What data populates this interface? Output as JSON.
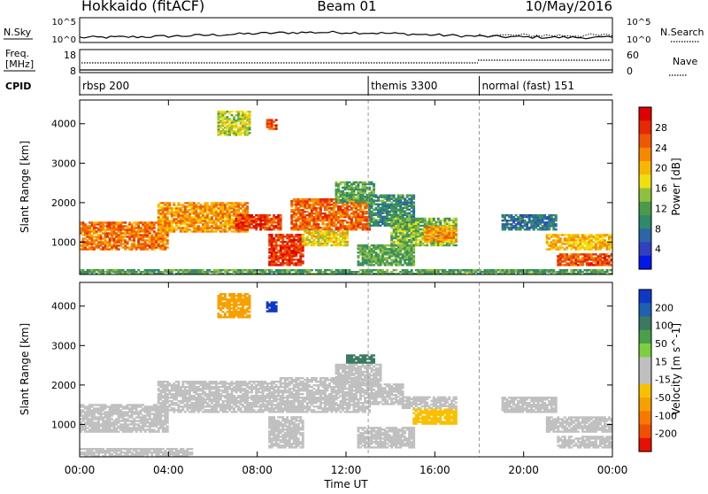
{
  "header": {
    "station": "Hokkaido (fitACF)",
    "beam": "Beam 01",
    "date": "10/May/2016"
  },
  "top_panels": {
    "nsky_label": "N.Sky",
    "nsky_ticks": [
      "10^5",
      "10^0"
    ],
    "nsearch_label": "N.Search",
    "nsearch_ticks": [
      "10^5",
      "10^0"
    ],
    "freq_label_1": "Freq.",
    "freq_label_2": "[MHz]",
    "freq_ticks": [
      "18",
      "8"
    ],
    "nave_label": "Nave",
    "nave_ticks": [
      "60",
      "0"
    ],
    "cpid_label": "CPID",
    "cpid_segments": [
      {
        "label": "rbsp 200",
        "start_hour": 0
      },
      {
        "label": "themis 3300",
        "start_hour": 13
      },
      {
        "label": "normal (fast) 151",
        "start_hour": 18
      }
    ]
  },
  "chart_data": [
    {
      "type": "heatmap",
      "title": "",
      "xlabel": "Time UT",
      "ylabel": "Slant Range [km]",
      "x_range_hours": [
        0,
        24
      ],
      "x_tick_labels": [
        "00:00",
        "04:00",
        "08:00",
        "12:00",
        "16:00",
        "20:00",
        "00:00"
      ],
      "ylim": [
        180,
        4600
      ],
      "y_ticks": [
        1000,
        2000,
        3000,
        4000
      ],
      "colorbar": {
        "label": "Power [dB]",
        "ticks": [
          4,
          8,
          12,
          16,
          20,
          24,
          28
        ],
        "colors": [
          "#0018e8",
          "#3040c0",
          "#2c66a8",
          "#2f8a6a",
          "#4a9a4a",
          "#90c040",
          "#f0e010",
          "#f8b800",
          "#f88800",
          "#f05800",
          "#e82800",
          "#e00000"
        ]
      },
      "regions": [
        {
          "t0": 0.0,
          "t1": 4.0,
          "r0": 800,
          "r1": 1500,
          "value": 24
        },
        {
          "t0": 3.5,
          "t1": 7.5,
          "r0": 1250,
          "r1": 2000,
          "value": 22
        },
        {
          "t0": 7.0,
          "t1": 9.0,
          "r0": 1300,
          "r1": 1700,
          "value": 27
        },
        {
          "t0": 8.5,
          "t1": 10.0,
          "r0": 400,
          "r1": 1200,
          "value": 28
        },
        {
          "t0": 9.5,
          "t1": 13.0,
          "r0": 1300,
          "r1": 2100,
          "value": 25
        },
        {
          "t0": 10.0,
          "t1": 12.0,
          "r0": 900,
          "r1": 1300,
          "value": 18
        },
        {
          "t0": 11.5,
          "t1": 13.2,
          "r0": 2000,
          "r1": 2500,
          "value": 12
        },
        {
          "t0": 13.0,
          "t1": 15.0,
          "r0": 1400,
          "r1": 2200,
          "value": 10
        },
        {
          "t0": 14.0,
          "t1": 17.0,
          "r0": 900,
          "r1": 1600,
          "value": 14
        },
        {
          "t0": 15.5,
          "t1": 17.0,
          "r0": 1000,
          "r1": 1400,
          "value": 22
        },
        {
          "t0": 12.5,
          "t1": 15.0,
          "r0": 400,
          "r1": 900,
          "value": 12
        },
        {
          "t0": 19.0,
          "t1": 21.5,
          "r0": 1300,
          "r1": 1700,
          "value": 8
        },
        {
          "t0": 21.0,
          "t1": 24.0,
          "r0": 800,
          "r1": 1200,
          "value": 20
        },
        {
          "t0": 21.5,
          "t1": 24.0,
          "r0": 400,
          "r1": 700,
          "value": 26
        },
        {
          "t0": 6.2,
          "t1": 7.6,
          "r0": 3700,
          "r1": 4300,
          "value": 16
        },
        {
          "t0": 8.4,
          "t1": 8.8,
          "r0": 3850,
          "r1": 4100,
          "value": 26
        },
        {
          "t0": 0.0,
          "t1": 24.0,
          "r0": 180,
          "r1": 300,
          "value": 12
        }
      ]
    },
    {
      "type": "heatmap",
      "title": "",
      "xlabel": "Time UT",
      "ylabel": "Slant Range [km]",
      "x_range_hours": [
        0,
        24
      ],
      "x_tick_labels": [
        "00:00",
        "04:00",
        "08:00",
        "12:00",
        "16:00",
        "20:00",
        "00:00"
      ],
      "ylim": [
        180,
        4600
      ],
      "y_ticks": [
        1000,
        2000,
        3000,
        4000
      ],
      "colorbar": {
        "label": "Velocity [m s^-1]",
        "ticks": [
          200,
          100,
          50,
          15,
          -15,
          -50,
          -100,
          -200
        ],
        "colors": [
          "#1038c8",
          "#2060b0",
          "#3a7a60",
          "#48a048",
          "#7cd040",
          "#c0c0c0",
          "#c0c0c0",
          "#f8c000",
          "#f8a000",
          "#f87800",
          "#f05000",
          "#e81000"
        ]
      },
      "regions": [
        {
          "t0": 0.0,
          "t1": 4.0,
          "r0": 800,
          "r1": 1500,
          "value": 0
        },
        {
          "t0": 3.5,
          "t1": 9.0,
          "r0": 1300,
          "r1": 2100,
          "value": 0
        },
        {
          "t0": 9.0,
          "t1": 13.0,
          "r0": 1300,
          "r1": 2200,
          "value": 0
        },
        {
          "t0": 8.5,
          "t1": 10.0,
          "r0": 400,
          "r1": 1200,
          "value": 0
        },
        {
          "t0": 11.5,
          "t1": 13.5,
          "r0": 2000,
          "r1": 2500,
          "value": 0
        },
        {
          "t0": 13.0,
          "t1": 14.5,
          "r0": 1500,
          "r1": 2000,
          "value": 30
        },
        {
          "t0": 15.0,
          "t1": 17.0,
          "r0": 1000,
          "r1": 1400,
          "value": -60
        },
        {
          "t0": 14.5,
          "t1": 17.0,
          "r0": 1400,
          "r1": 1700,
          "value": 25
        },
        {
          "t0": 12.5,
          "t1": 15.0,
          "r0": 400,
          "r1": 900,
          "value": 0
        },
        {
          "t0": 19.0,
          "t1": 21.5,
          "r0": 1300,
          "r1": 1700,
          "value": -20
        },
        {
          "t0": 21.0,
          "t1": 24.0,
          "r0": 800,
          "r1": 1200,
          "value": 0
        },
        {
          "t0": 21.5,
          "t1": 24.0,
          "r0": 400,
          "r1": 700,
          "value": 0
        },
        {
          "t0": 0.0,
          "t1": 5.0,
          "r0": 180,
          "r1": 400,
          "value": -30
        },
        {
          "t0": 12.0,
          "t1": 13.2,
          "r0": 2550,
          "r1": 2750,
          "value": 110
        },
        {
          "t0": 6.2,
          "t1": 7.6,
          "r0": 3700,
          "r1": 4300,
          "value": -80
        },
        {
          "t0": 8.4,
          "t1": 8.8,
          "r0": 3850,
          "r1": 4100,
          "value": 220
        }
      ]
    }
  ]
}
